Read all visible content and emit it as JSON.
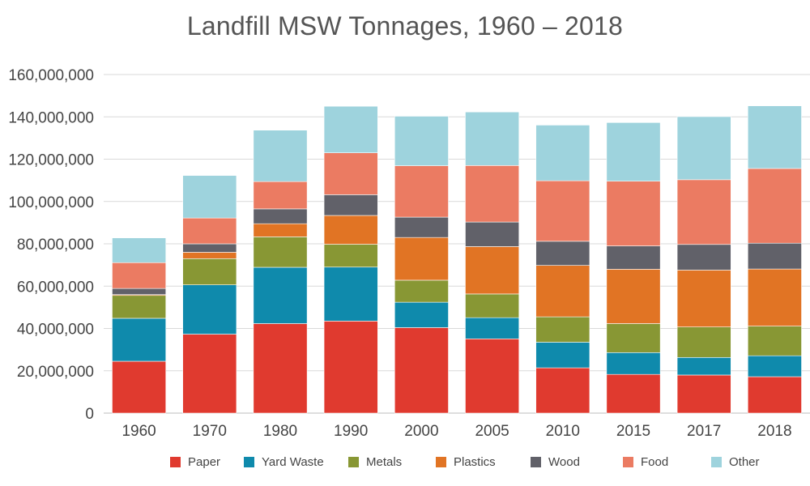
{
  "chart_data": {
    "type": "bar",
    "stacked": true,
    "title": "Landfill MSW Tonnages, 1960 – 2018",
    "xlabel": "",
    "ylabel": "",
    "ylim": [
      0,
      160000000
    ],
    "y_ticks": [
      "0",
      "20,000,000",
      "40,000,000",
      "60,000,000",
      "80,000,000",
      "100,000,000",
      "120,000,000",
      "140,000,000",
      "160,000,000"
    ],
    "grid": true,
    "legend_position": "bottom",
    "categories": [
      "1960",
      "1970",
      "1980",
      "1990",
      "2000",
      "2005",
      "2010",
      "2015",
      "2017",
      "2018"
    ],
    "series": [
      {
        "name": "Paper",
        "color": "#e03a2f",
        "values": [
          24500000,
          37300000,
          42300000,
          43500000,
          40400000,
          35100000,
          21400000,
          18300000,
          18000000,
          17200000
        ]
      },
      {
        "name": "Yard Waste",
        "color": "#0f8aac",
        "values": [
          20300000,
          23300000,
          26600000,
          25500000,
          12000000,
          10000000,
          12100000,
          10300000,
          8300000,
          9900000
        ]
      },
      {
        "name": "Metals",
        "color": "#889734",
        "values": [
          10800000,
          12400000,
          14400000,
          10800000,
          10400000,
          11200000,
          12000000,
          13700000,
          14400000,
          14000000
        ]
      },
      {
        "name": "Plastics",
        "color": "#e17424",
        "values": [
          400000,
          3000000,
          6200000,
          13600000,
          20200000,
          22400000,
          24300000,
          25700000,
          26900000,
          27000000
        ]
      },
      {
        "name": "Wood",
        "color": "#616169",
        "values": [
          2900000,
          4000000,
          7000000,
          9800000,
          9600000,
          11600000,
          11400000,
          11000000,
          12100000,
          12200000
        ]
      },
      {
        "name": "Food",
        "color": "#eb7b62",
        "values": [
          12200000,
          12200000,
          12900000,
          19800000,
          24300000,
          26700000,
          28600000,
          30600000,
          30600000,
          35300000
        ]
      },
      {
        "name": "Other",
        "color": "#9ed3dd",
        "values": [
          11700000,
          20100000,
          24300000,
          22000000,
          23400000,
          25300000,
          26300000,
          27700000,
          29800000,
          29600000
        ]
      }
    ]
  }
}
